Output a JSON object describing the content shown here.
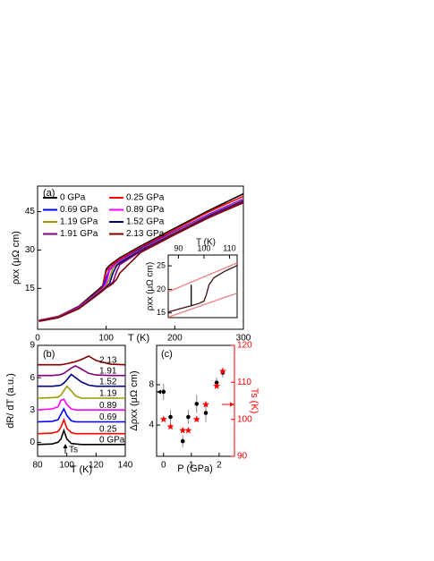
{
  "chart_data": [
    {
      "type": "line",
      "panel_label": "(a)",
      "xlabel": "T (K)",
      "ylabel": "ρxx (μΩ cm)",
      "legend": true,
      "xlim": [
        0,
        300
      ],
      "xticks": [
        0,
        100,
        200,
        300
      ],
      "ylim": [
        -1,
        55
      ],
      "yticks": [
        15,
        30,
        45
      ],
      "x": [
        2,
        30,
        60,
        80,
        95,
        100,
        105,
        110,
        115,
        120,
        150,
        200,
        250,
        300
      ],
      "series": [
        {
          "name": "0 GPa",
          "color": "#000000",
          "values": [
            2.5,
            4,
            8,
            12.5,
            16,
            22.5,
            24,
            25,
            26,
            27,
            31.5,
            38.5,
            45.5,
            52
          ]
        },
        {
          "name": "0.25 GPa",
          "color": "#ff0000",
          "values": [
            2.4,
            3.9,
            7.8,
            12,
            15.5,
            21.5,
            23.5,
            24.5,
            25.5,
            26.5,
            31,
            38,
            45,
            51
          ]
        },
        {
          "name": "0.69 GPa",
          "color": "#0000ff",
          "values": [
            2.3,
            3.8,
            7.6,
            11.8,
            15,
            19,
            22.5,
            23.8,
            24.8,
            25.8,
            30.5,
            37.3,
            44,
            50
          ]
        },
        {
          "name": "0.89 GPa",
          "color": "#ff00ff",
          "values": [
            2.3,
            3.8,
            7.5,
            11.6,
            14.8,
            17,
            22,
            23.5,
            24.6,
            25.6,
            30.2,
            37,
            43.8,
            49.8
          ]
        },
        {
          "name": "1.19 GPa",
          "color": "#999900",
          "values": [
            2.2,
            3.7,
            7.3,
            11.4,
            14.6,
            16,
            19,
            23,
            24.2,
            25.2,
            30,
            36.8,
            43.5,
            49.5
          ]
        },
        {
          "name": "1.52 GPa",
          "color": "#000080",
          "values": [
            2.2,
            3.6,
            7.2,
            11.2,
            14.4,
            15.5,
            17,
            21,
            23.8,
            25,
            29.8,
            36.5,
            43.3,
            49.3
          ]
        },
        {
          "name": "1.91 GPa",
          "color": "#800080",
          "values": [
            2.1,
            3.5,
            7,
            11,
            14.2,
            15.3,
            16.3,
            17.5,
            21.5,
            24.3,
            29.5,
            36.3,
            43,
            49
          ]
        },
        {
          "name": "2.13 GPa",
          "color": "#800000",
          "values": [
            2.1,
            3.5,
            7,
            11,
            14,
            15.2,
            16,
            17,
            18.5,
            21,
            29,
            36,
            42.7,
            48.5
          ]
        }
      ]
    },
    {
      "type": "line",
      "xlabel": "T (K)",
      "ylabel": "ρxx (μΩ cm)",
      "xlim": [
        86,
        113
      ],
      "xticks": [
        90,
        100,
        110
      ],
      "ylim": [
        14,
        27.3
      ],
      "yticks": [
        15,
        20,
        25
      ],
      "series": [
        {
          "color": "#f08080",
          "x": [
            86,
            113
          ],
          "values": [
            19.5,
            25.6
          ]
        },
        {
          "color": "#f08080",
          "x": [
            86,
            113
          ],
          "values": [
            14.1,
            19.2
          ]
        },
        {
          "color": "#000000",
          "x": [
            95,
            95
          ],
          "values": [
            16.5,
            21
          ]
        },
        {
          "color": "#3a1010",
          "x": [
            86,
            90,
            95,
            98,
            100,
            101,
            102,
            104,
            108,
            112,
            113
          ],
          "values": [
            15.2,
            15.8,
            16.5,
            17,
            17.5,
            19,
            21,
            22.5,
            23.8,
            24.8,
            25.1
          ]
        }
      ]
    },
    {
      "type": "line",
      "panel_label": "(b)",
      "xlabel": "T (K)",
      "ylabel": "dR/ dT (a.u.)",
      "curve_labels": true,
      "annotation": "Ts",
      "xlim": [
        80,
        140
      ],
      "xticks": [
        80,
        100,
        120,
        140
      ],
      "ylim": [
        -1.3,
        9
      ],
      "yticks": [
        0,
        3,
        6,
        9
      ],
      "x": [
        80,
        90,
        94,
        96,
        98,
        100,
        103,
        106,
        110,
        115,
        120,
        130,
        140
      ],
      "series": [
        {
          "name": "2.13",
          "color": "#800000",
          "values": [
            7.2,
            7.2,
            7.2,
            7.2,
            7.25,
            7.3,
            7.4,
            7.5,
            7.7,
            8.0,
            7.6,
            7.25,
            7.2
          ]
        },
        {
          "name": "1.91",
          "color": "#800080",
          "values": [
            6.2,
            6.2,
            6.25,
            6.3,
            6.4,
            6.6,
            6.9,
            7.1,
            6.8,
            6.4,
            6.25,
            6.2,
            6.2
          ]
        },
        {
          "name": "1.52",
          "color": "#000080",
          "values": [
            5.2,
            5.2,
            5.25,
            5.3,
            5.5,
            5.8,
            6.3,
            6.0,
            5.6,
            5.3,
            5.2,
            5.2,
            5.2
          ]
        },
        {
          "name": "1.19",
          "color": "#999900",
          "values": [
            4.1,
            4.15,
            4.2,
            4.4,
            4.8,
            5.2,
            4.8,
            4.3,
            4.1,
            4.1,
            4.1,
            4.1,
            4.1
          ]
        },
        {
          "name": "0.89",
          "color": "#ff00ff",
          "values": [
            3.0,
            3.1,
            3.3,
            3.9,
            4.0,
            3.5,
            3.1,
            3.0,
            3.0,
            3.0,
            3.0,
            3.0,
            3.0
          ]
        },
        {
          "name": "0.69",
          "color": "#0000ff",
          "values": [
            1.9,
            1.95,
            2.1,
            2.6,
            3.1,
            2.5,
            2.0,
            1.9,
            1.9,
            1.9,
            1.9,
            1.9,
            1.9
          ]
        },
        {
          "name": "0.25",
          "color": "#ff0000",
          "values": [
            0.8,
            0.85,
            1.0,
            1.4,
            2.1,
            1.3,
            0.9,
            0.8,
            0.8,
            0.8,
            0.8,
            0.8,
            0.8
          ]
        },
        {
          "name": "0 GPa",
          "color": "#000000",
          "values": [
            -0.2,
            -0.15,
            0,
            0.3,
            1.1,
            0.3,
            -0.1,
            -0.15,
            -0.2,
            -0.2,
            -0.2,
            -0.2,
            -0.2
          ]
        }
      ]
    },
    {
      "type": "scatter",
      "panel_label": "(c)",
      "xlabel": "P (GPa)",
      "ylabel": "Δρxx (μΩ cm)",
      "y2label": "Ts (K)",
      "xlim": [
        -0.25,
        2.55
      ],
      "xticks": [
        0,
        1,
        2
      ],
      "ylim": [
        0.9,
        11.9
      ],
      "yticks": [
        4,
        8
      ],
      "y2lim": [
        90,
        120
      ],
      "y2ticks": [
        90,
        100,
        110,
        120
      ],
      "y2color": "#ff0000",
      "x": [
        0,
        0.25,
        0.69,
        0.89,
        1.19,
        1.52,
        1.91,
        2.13
      ],
      "series": [
        {
          "color": "#000000",
          "marker": "dot",
          "values": [
            7.3,
            4.8,
            2.4,
            4.8,
            6.1,
            5.2,
            8.2,
            9.2
          ],
          "errors": [
            0.8,
            0.7,
            0.6,
            0.7,
            0.9,
            0.9,
            0.5,
            0.5
          ]
        },
        {
          "color": "#ff0000",
          "marker": "star",
          "axis": "y2",
          "values": [
            100,
            98,
            97,
            97,
            100,
            104,
            109,
            113
          ]
        }
      ]
    }
  ]
}
